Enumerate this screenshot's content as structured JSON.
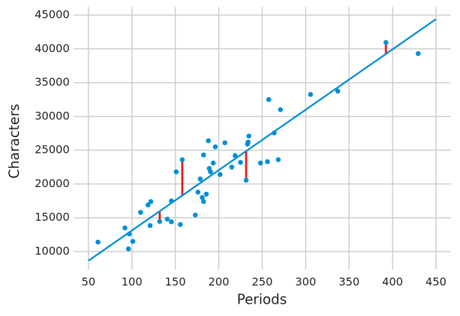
{
  "chart_data": {
    "type": "scatter",
    "xlabel": "Periods",
    "ylabel": "Characters",
    "x": [
      61,
      92,
      97,
      96,
      101,
      110,
      118.6,
      121.8,
      121,
      132,
      140.7,
      145.5,
      145.5,
      151,
      155.7,
      158,
      173,
      176,
      178.6,
      181,
      182.5,
      185.7,
      182.5,
      188,
      189,
      190.4,
      193.6,
      196,
      201.5,
      207,
      215,
      218.8,
      225,
      231.5,
      233,
      233.8,
      234.6,
      248,
      256,
      257.5,
      263.8,
      268.5,
      271,
      305.6,
      337,
      392.4,
      429.5
    ],
    "y": [
      11400,
      13500,
      12600,
      10400,
      11500,
      15800,
      16900,
      17400,
      13850,
      14450,
      14800,
      14400,
      17500,
      21800,
      14000,
      23600,
      15400,
      18800,
      20750,
      18000,
      17400,
      18500,
      24300,
      26400,
      22300,
      21800,
      23100,
      25500,
      21400,
      26100,
      22500,
      24200,
      23200,
      20550,
      25900,
      26200,
      27100,
      23100,
      23300,
      32500,
      27550,
      23600,
      31000,
      33250,
      33750,
      40950,
      39300
    ],
    "color": "#008fd5",
    "fit_line": {
      "x": [
        50,
        450
      ],
      "y": [
        8650,
        44400
      ],
      "color": "#008fd5"
    },
    "highlight": [
      9,
      15,
      33,
      45
    ],
    "highlight_color": "#e5171b",
    "xlim": [
      33,
      467
    ],
    "ylim": [
      7350,
      46200
    ],
    "xticks": [
      50,
      100,
      150,
      200,
      250,
      300,
      350,
      400,
      450
    ],
    "yticks": [
      10000,
      15000,
      20000,
      25000,
      30000,
      35000,
      40000,
      45000
    ],
    "grid": true
  }
}
